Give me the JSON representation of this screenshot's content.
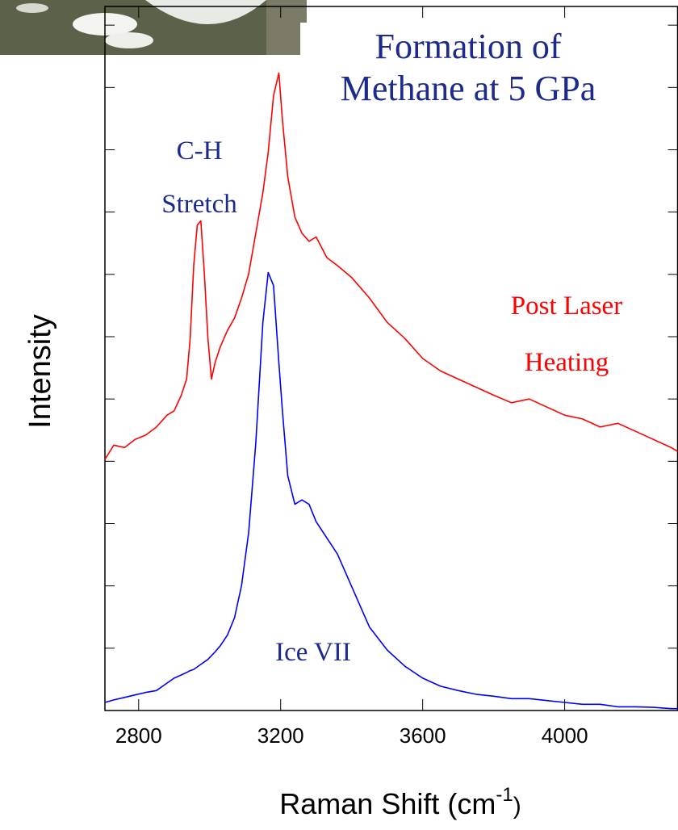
{
  "chart_data": {
    "type": "line",
    "annotations": [
      {
        "lines": [
          "Formation of",
          "Methane at 5 GPa"
        ],
        "color": "#1b2a8c"
      },
      {
        "lines": [
          "C-H",
          "Stretch"
        ],
        "color": "#1b2a8c"
      },
      {
        "lines": [
          "Post Laser",
          "Heating"
        ],
        "color": "#ff0000"
      },
      {
        "lines": [
          "Ice VII"
        ],
        "color": "#1b2a8c"
      }
    ],
    "xlabel": {
      "text": "Raman Shift (cm",
      "sup": "-1",
      "end": ")"
    },
    "ylabel": "Intensity",
    "x": [
      2705,
      2730,
      2760,
      2790,
      2820,
      2850,
      2880,
      2900,
      2920,
      2935,
      2945,
      2955,
      2965,
      2975,
      2985,
      2995,
      3005,
      3015,
      3030,
      3050,
      3070,
      3090,
      3110,
      3130,
      3150,
      3165,
      3180,
      3195,
      3205,
      3220,
      3240,
      3260,
      3280,
      3300,
      3330,
      3360,
      3400,
      3450,
      3500,
      3550,
      3600,
      3650,
      3700,
      3750,
      3800,
      3850,
      3900,
      3950,
      4000,
      4050,
      4100,
      4150,
      4200,
      4250,
      4300,
      4318
    ],
    "series": [
      {
        "name": "Post Laser Heating",
        "color": "#ff0000",
        "values": [
          4.03,
          4.26,
          4.22,
          4.35,
          4.42,
          4.55,
          4.74,
          4.81,
          5.06,
          5.32,
          5.97,
          7.14,
          7.79,
          7.86,
          7.01,
          5.97,
          5.32,
          5.58,
          5.84,
          6.1,
          6.3,
          6.62,
          7.01,
          7.66,
          8.31,
          8.96,
          9.87,
          10.23,
          9.48,
          8.57,
          7.92,
          7.66,
          7.53,
          7.6,
          7.27,
          7.14,
          6.95,
          6.62,
          6.23,
          5.97,
          5.65,
          5.45,
          5.32,
          5.19,
          5.06,
          4.94,
          5.0,
          4.87,
          4.74,
          4.68,
          4.55,
          4.61,
          4.48,
          4.35,
          4.22,
          4.16
        ]
      },
      {
        "name": "Ice VII",
        "color": "#0000ff",
        "values": [
          0.13,
          0.17,
          0.21,
          0.25,
          0.29,
          0.32,
          0.44,
          0.52,
          0.57,
          0.61,
          0.64,
          0.66,
          0.7,
          0.74,
          0.78,
          0.82,
          0.88,
          0.94,
          1.04,
          1.21,
          1.49,
          2.01,
          2.86,
          4.29,
          6.23,
          7.03,
          6.82,
          5.58,
          4.81,
          3.77,
          3.31,
          3.38,
          3.31,
          3.03,
          2.77,
          2.51,
          1.99,
          1.34,
          0.97,
          0.71,
          0.52,
          0.39,
          0.32,
          0.26,
          0.23,
          0.19,
          0.19,
          0.16,
          0.13,
          0.1,
          0.1,
          0.06,
          0.06,
          0.05,
          0.03,
          0.03
        ]
      }
    ],
    "xlim": [
      2705,
      4318
    ],
    "xticks": [
      2800,
      3200,
      3600,
      4000
    ],
    "ylim": [
      0,
      11.3
    ],
    "yticks": [
      1,
      2,
      3,
      4,
      5,
      6,
      7,
      8,
      9,
      10,
      11
    ]
  }
}
